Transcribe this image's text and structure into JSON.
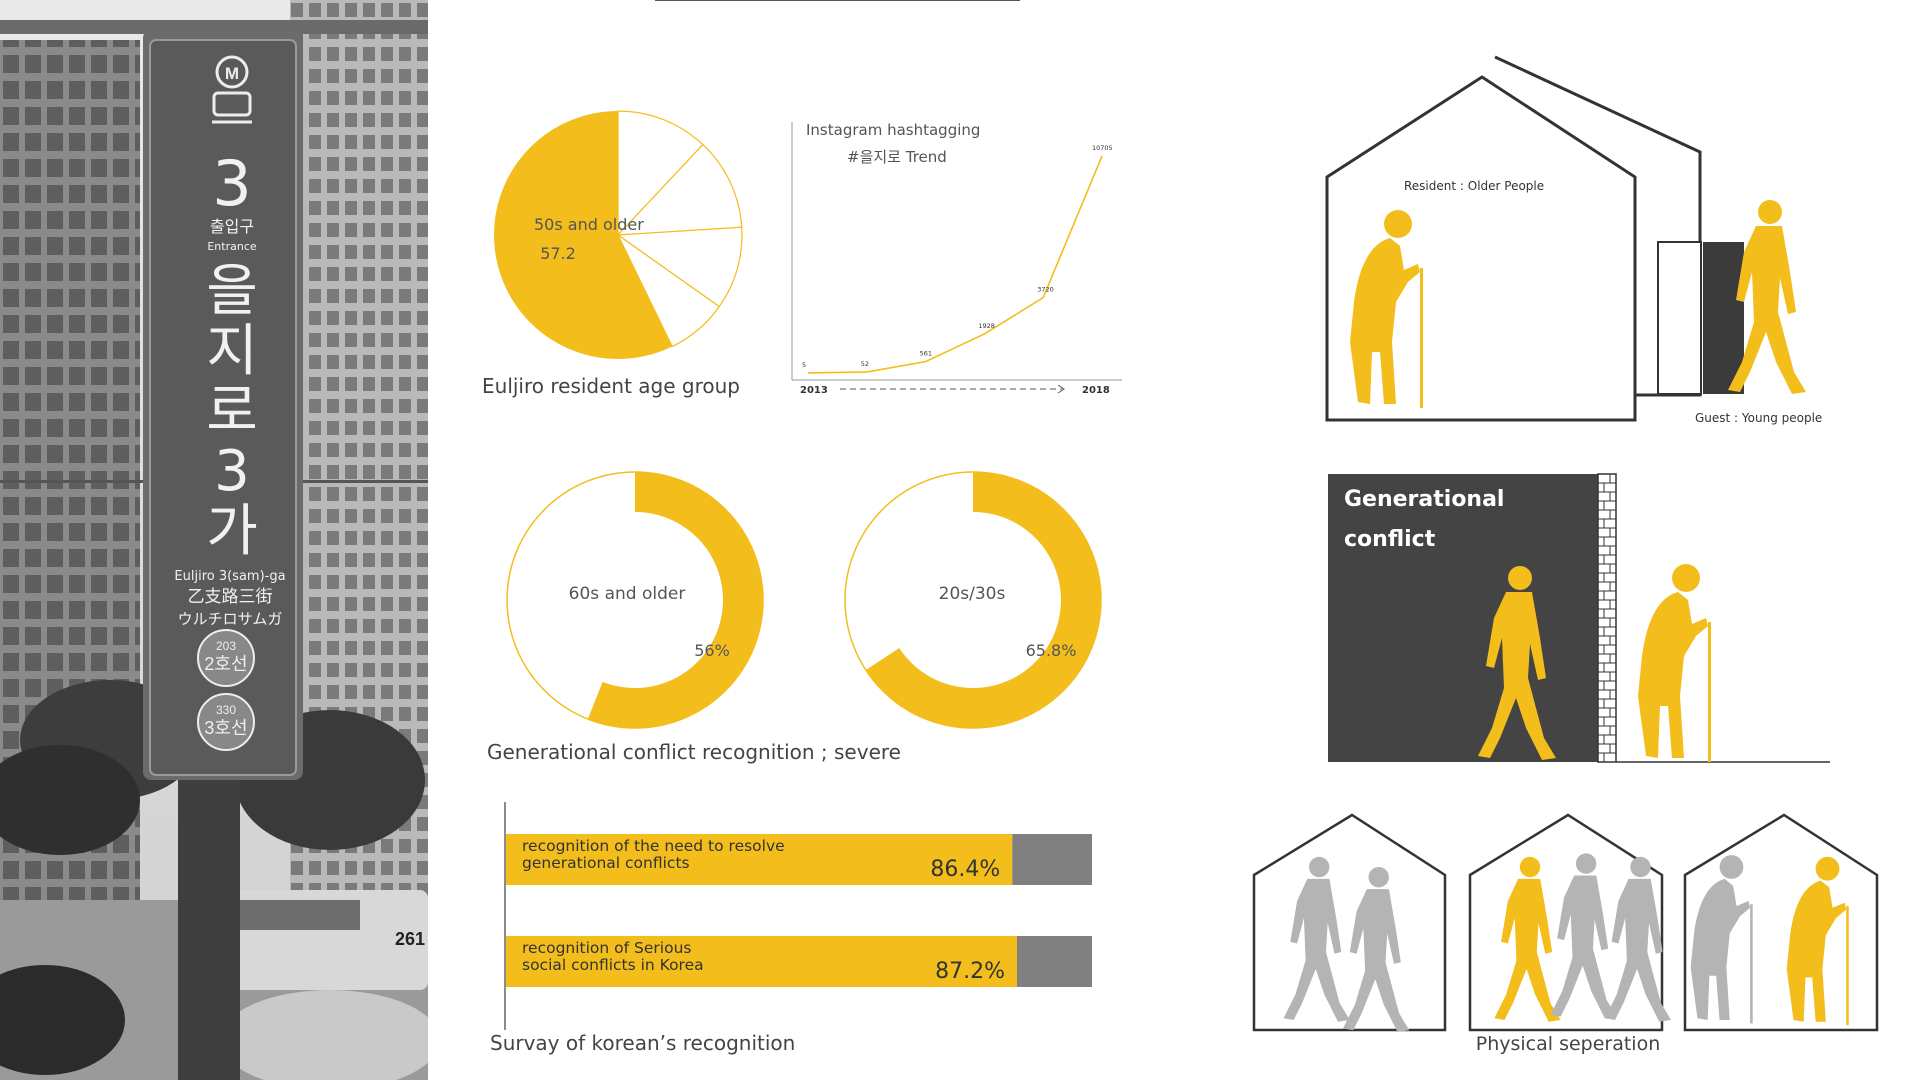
{
  "colors": {
    "accent": "#F3BD1C",
    "dark": "#444444",
    "gray": "#808080",
    "light_gray": "#b4b4b4",
    "line": "#333333"
  },
  "photo_sign": {
    "metro_mark": "M",
    "line_number": "3",
    "exit_ko": "출입구",
    "exit_en": "Entrance",
    "station_ko": [
      "을",
      "지",
      "로",
      "3",
      "가"
    ],
    "station_en": "Euljiro 3(sam)-ga",
    "station_cn": "乙支路三街",
    "station_jp": "ウルチロサムガ",
    "transfer_1_code": "203",
    "transfer_1_line": "2호선",
    "transfer_2_code": "330",
    "transfer_2_line": "3호선",
    "bus_number": "261"
  },
  "chart_data": [
    {
      "type": "pie",
      "title": "Euljiro resident age group",
      "slices": [
        {
          "label": "50s and older",
          "value": 57.2,
          "highlighted": true
        },
        {
          "label": "",
          "value": 12.0
        },
        {
          "label": "",
          "value": 12.0
        },
        {
          "label": "",
          "value": 10.8
        },
        {
          "label": "",
          "value": 8.0
        }
      ],
      "value_text": "57.2"
    },
    {
      "type": "line",
      "title": "Instagram hashtagging",
      "subtitle": "#을지로 Trend",
      "x": [
        2013,
        2014,
        2015,
        2016,
        2017,
        2018
      ],
      "values": [
        5,
        52,
        561,
        1928,
        3720,
        10705
      ],
      "x_start_label": "2013",
      "x_end_label": "2018",
      "ylim": [
        0,
        11500
      ]
    },
    {
      "type": "pie",
      "subtype": "donut",
      "center_label": "60s and older",
      "value": 56,
      "value_label": "56%"
    },
    {
      "type": "pie",
      "subtype": "donut",
      "center_label": "20s/30s",
      "value": 65.8,
      "value_label": "65.8%"
    },
    {
      "type": "bar",
      "orientation": "horizontal",
      "categories": [
        "recognition of the need to resolve generational conflicts",
        "recognition of Serious social conflicts in Korea"
      ],
      "category_lines": [
        [
          "recognition of the need to resolve",
          "generational conflicts"
        ],
        [
          "recognition of Serious",
          "social conflicts in Korea"
        ]
      ],
      "values": [
        86.4,
        87.2
      ],
      "value_labels": [
        "86.4%",
        "87.2%"
      ],
      "xlim": [
        0,
        100
      ]
    }
  ],
  "captions": {
    "donut_group": "Generational conflict recognition ; severe",
    "bar_group": "Survay of korean’s recognition"
  },
  "diagrams": {
    "house_resident_label": "Resident : Older People",
    "house_guest_label": "Guest : Young people",
    "conflict_title_1": "Generational",
    "conflict_title_2": "conflict",
    "separation_caption": "Physical seperation"
  }
}
